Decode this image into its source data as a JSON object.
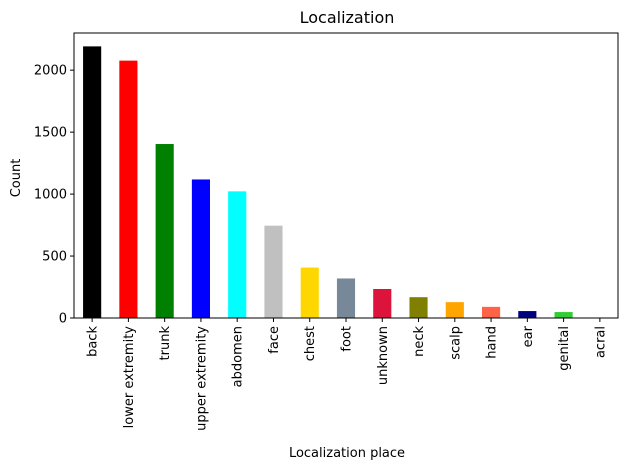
{
  "chart_data": {
    "type": "bar",
    "title": "Localization",
    "xlabel": "Localization place",
    "ylabel": "Count",
    "ylim": [
      0,
      2300
    ],
    "yticks": [
      0,
      500,
      1000,
      1500,
      2000
    ],
    "grid": false,
    "categories": [
      "back",
      "lower extremity",
      "trunk",
      "upper extremity",
      "abdomen",
      "face",
      "chest",
      "foot",
      "unknown",
      "neck",
      "scalp",
      "hand",
      "ear",
      "genital",
      "acral"
    ],
    "values": [
      2192,
      2077,
      1404,
      1118,
      1022,
      745,
      407,
      319,
      234,
      168,
      128,
      90,
      56,
      48,
      7
    ],
    "colors": [
      "#000000",
      "#ff0000",
      "#008000",
      "#0000ff",
      "#00ffff",
      "#c0c0c0",
      "#ffd700",
      "#778899",
      "#dc143c",
      "#808000",
      "#ffa500",
      "#ff6347",
      "#000080",
      "#32cd32",
      "#ffffff"
    ]
  }
}
